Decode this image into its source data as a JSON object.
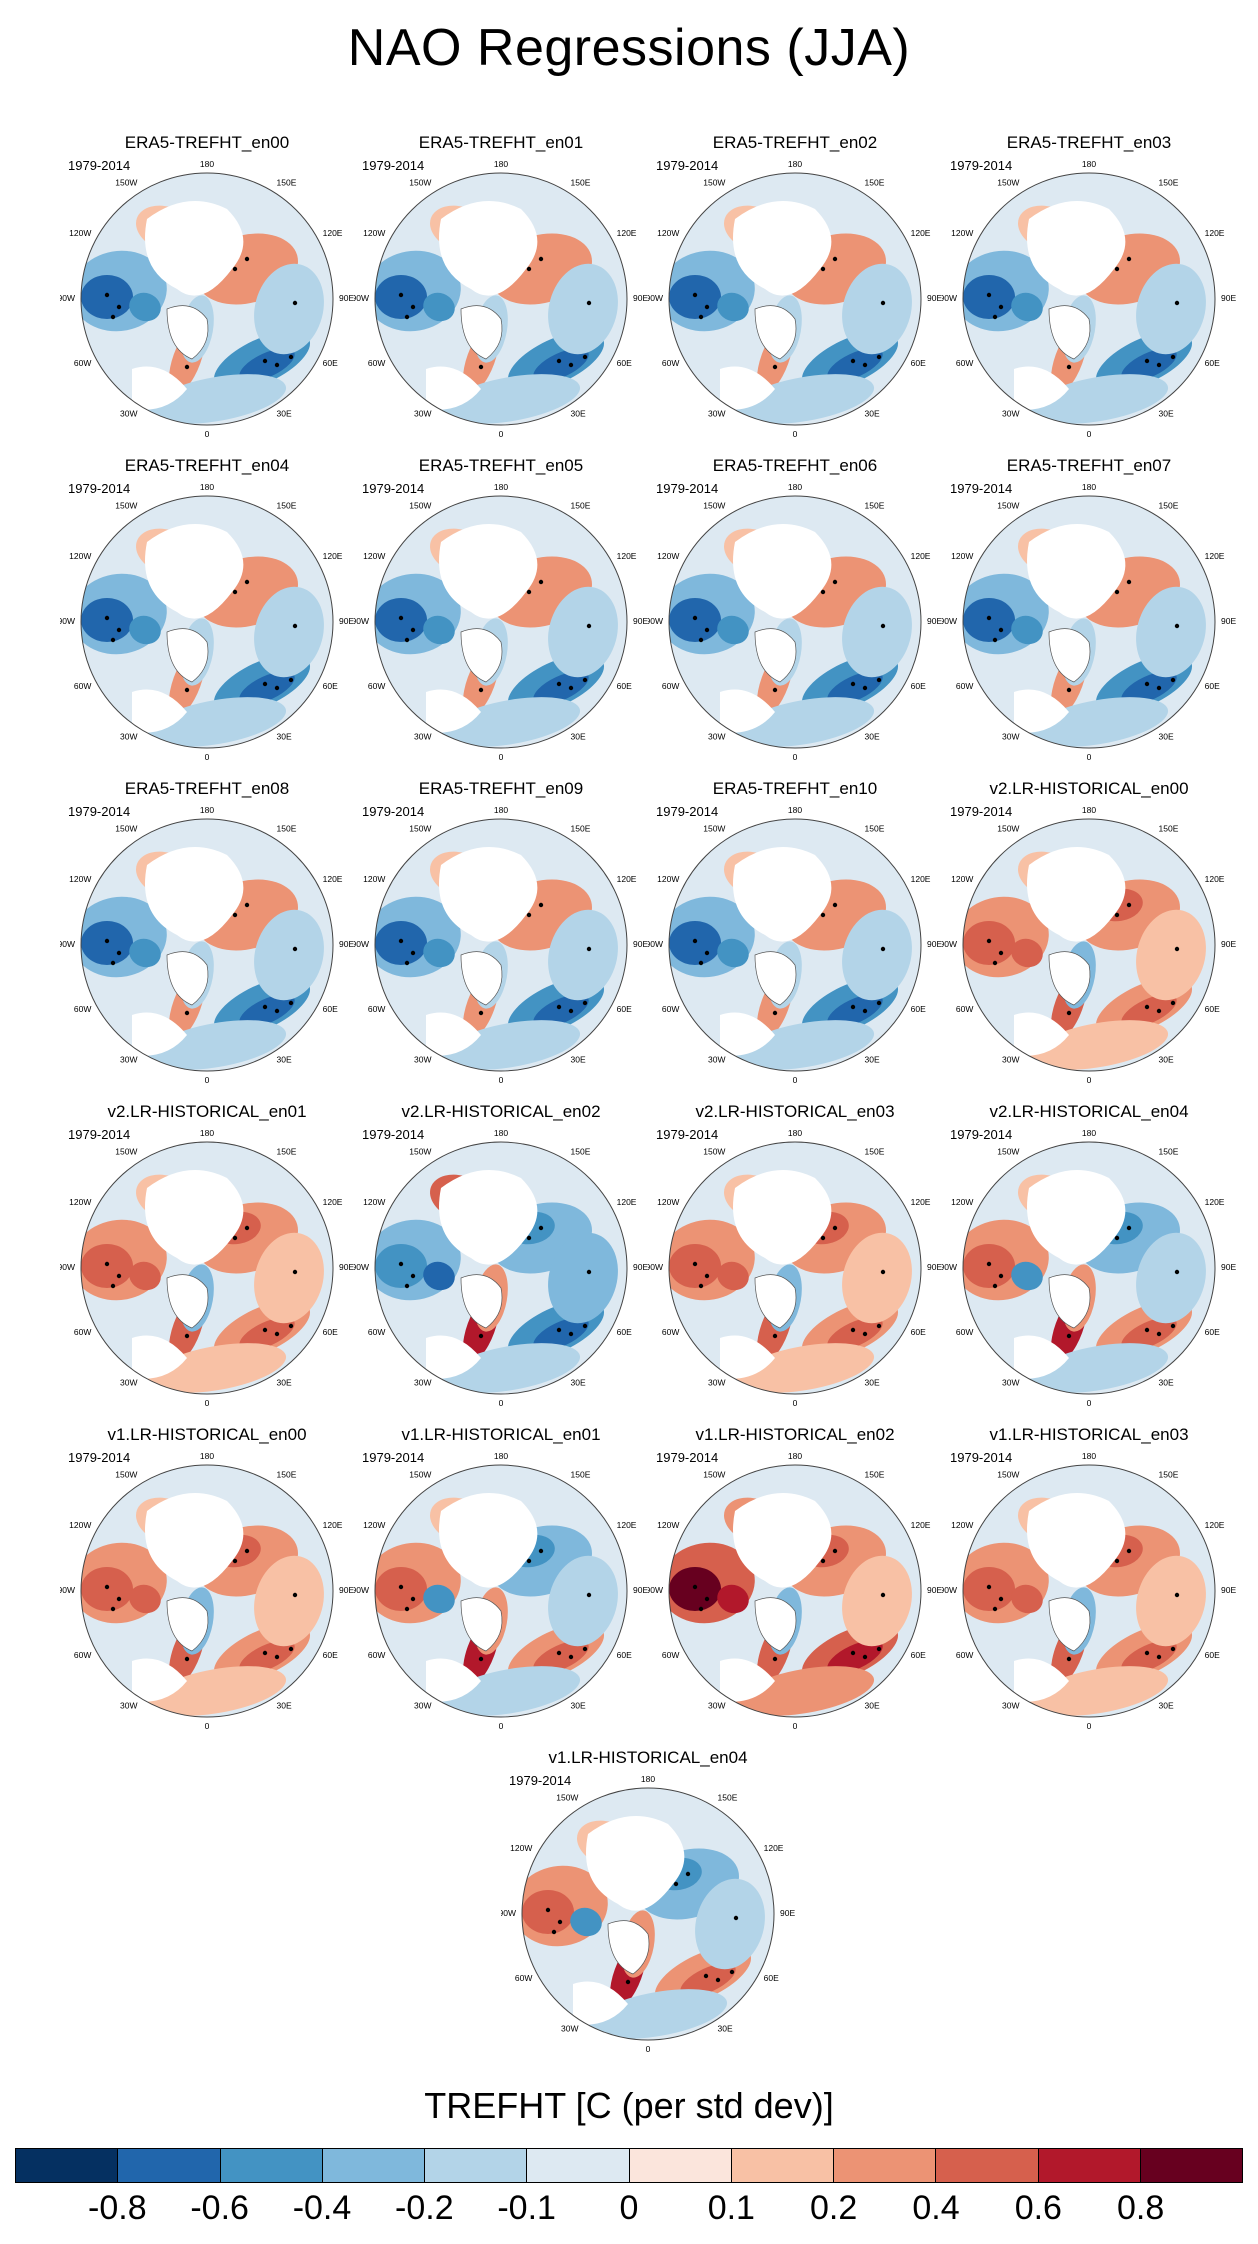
{
  "figure": {
    "title": "NAO Regressions (JJA)",
    "period": "1979-2014",
    "variable_label": "TREFHT [C (per std dev)]"
  },
  "longitude_labels": [
    "180",
    "150E",
    "120E",
    "90E",
    "60E",
    "30E",
    "0",
    "30W",
    "60W",
    "90W",
    "120W",
    "150W"
  ],
  "panels": [
    {
      "title": "ERA5-TREFHT_en00",
      "pattern": "era"
    },
    {
      "title": "ERA5-TREFHT_en01",
      "pattern": "era"
    },
    {
      "title": "ERA5-TREFHT_en02",
      "pattern": "era"
    },
    {
      "title": "ERA5-TREFHT_en03",
      "pattern": "era"
    },
    {
      "title": "ERA5-TREFHT_en04",
      "pattern": "era"
    },
    {
      "title": "ERA5-TREFHT_en05",
      "pattern": "era"
    },
    {
      "title": "ERA5-TREFHT_en06",
      "pattern": "era"
    },
    {
      "title": "ERA5-TREFHT_en07",
      "pattern": "era"
    },
    {
      "title": "ERA5-TREFHT_en08",
      "pattern": "era"
    },
    {
      "title": "ERA5-TREFHT_en09",
      "pattern": "era"
    },
    {
      "title": "ERA5-TREFHT_en10",
      "pattern": "era"
    },
    {
      "title": "v2.LR-HISTORICAL_en00",
      "pattern": "warm"
    },
    {
      "title": "v2.LR-HISTORICAL_en01",
      "pattern": "warm"
    },
    {
      "title": "v2.LR-HISTORICAL_en02",
      "pattern": "cool"
    },
    {
      "title": "v2.LR-HISTORICAL_en03",
      "pattern": "warm"
    },
    {
      "title": "v2.LR-HISTORICAL_en04",
      "pattern": "mixed"
    },
    {
      "title": "v1.LR-HISTORICAL_en00",
      "pattern": "warm"
    },
    {
      "title": "v1.LR-HISTORICAL_en01",
      "pattern": "mixed"
    },
    {
      "title": "v1.LR-HISTORICAL_en02",
      "pattern": "hot"
    },
    {
      "title": "v1.LR-HISTORICAL_en03",
      "pattern": "warm"
    },
    {
      "title": "v1.LR-HISTORICAL_en04",
      "pattern": "mixed"
    }
  ],
  "colorbar": {
    "colors": [
      "#053061",
      "#2166ac",
      "#4393c3",
      "#7fb8dc",
      "#b3d4e8",
      "#dde9f2",
      "#fbe5dc",
      "#f8c1a5",
      "#ec9374",
      "#d6604d",
      "#b2182b",
      "#67001f"
    ],
    "ticks": [
      "-0.8",
      "-0.6",
      "-0.4",
      "-0.2",
      "-0.1",
      "0",
      "0.1",
      "0.2",
      "0.4",
      "0.6",
      "0.8"
    ]
  }
}
